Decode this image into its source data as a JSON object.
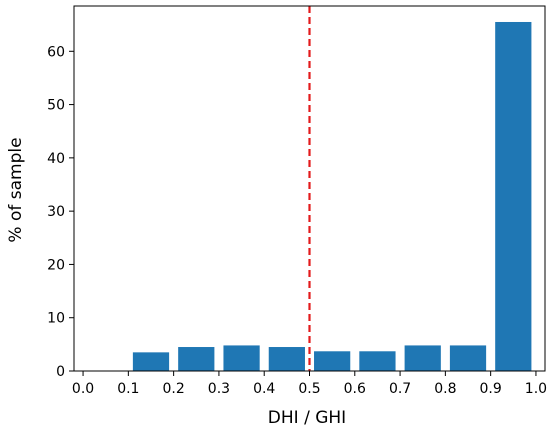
{
  "chart_data": {
    "type": "bar",
    "title": "",
    "xlabel": "DHI / GHI",
    "ylabel": "% of sample",
    "xlim": [
      -0.02,
      1.02
    ],
    "ylim": [
      0,
      68.5
    ],
    "xticks": [
      "0.0",
      "0.1",
      "0.2",
      "0.3",
      "0.4",
      "0.5",
      "0.6",
      "0.7",
      "0.8",
      "0.9",
      "1.0"
    ],
    "yticks": [
      "0",
      "10",
      "20",
      "30",
      "40",
      "50",
      "60"
    ],
    "bin_edges": [
      0.0,
      0.1,
      0.2,
      0.3,
      0.4,
      0.5,
      0.6,
      0.7,
      0.8,
      0.9,
      1.0
    ],
    "values": [
      0.0,
      3.5,
      4.5,
      4.8,
      4.5,
      3.7,
      3.7,
      4.8,
      4.8,
      65.5
    ],
    "bar_color": "#1f77b4",
    "threshold_line": {
      "x": 0.5,
      "color": "#e31a1c",
      "style": "dashed"
    },
    "grid": false,
    "legend": "none"
  }
}
